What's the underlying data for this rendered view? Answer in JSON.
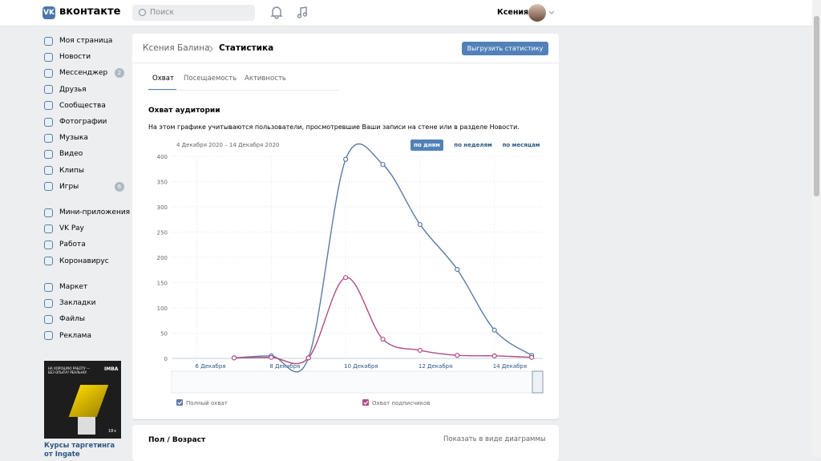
{
  "header": {
    "logo": "вконтакте",
    "search_placeholder": "Поиск",
    "user_name": "Ксения"
  },
  "sidebar": {
    "groups": [
      [
        {
          "label": "Моя страница"
        },
        {
          "label": "Новости"
        },
        {
          "label": "Мессенджер",
          "badge": "2"
        },
        {
          "label": "Друзья"
        },
        {
          "label": "Сообщества"
        },
        {
          "label": "Фотографии"
        },
        {
          "label": "Музыка"
        },
        {
          "label": "Видео"
        },
        {
          "label": "Клипы"
        },
        {
          "label": "Игры",
          "badge": "6"
        }
      ],
      [
        {
          "label": "Мини-приложения"
        },
        {
          "label": "VK Pay"
        },
        {
          "label": "Работа"
        },
        {
          "label": "Коронавирус"
        }
      ],
      [
        {
          "label": "Маркет"
        },
        {
          "label": "Закладки"
        },
        {
          "label": "Файлы"
        },
        {
          "label": "Реклама"
        }
      ]
    ]
  },
  "ad": {
    "brand": "IMBA",
    "headline": "НА ХОРОШУЮ РАБОТУ — БЕЗ ОПЫТА? РЕАЛЬНО!",
    "age": "18+",
    "title": "Курсы таргетинга",
    "subtitle": "от Ingate"
  },
  "breadcrumb": {
    "parent": "Ксения Балина",
    "current": "Статистика"
  },
  "export_button": "Выгрузить статистику",
  "tabs": [
    "Охват",
    "Посещаемость",
    "Активность"
  ],
  "section": {
    "title": "Охват аудитории",
    "description": "На этом графике учитываются пользователи, просмотревшие Ваши записи на стене или в разделе Новости.",
    "date_range": "4 Декабря 2020 – 14 Декабря 2020",
    "periods": [
      "по дням",
      "по неделям",
      "по месяцам"
    ]
  },
  "chart_data": {
    "type": "line",
    "x": [
      7,
      8,
      9,
      10,
      11,
      12,
      13,
      14,
      15
    ],
    "series": [
      {
        "name": "Полный охват",
        "color": "#5b7aa6",
        "values": [
          1,
          5,
          1,
          394,
          384,
          265,
          176,
          56,
          6
        ]
      },
      {
        "name": "Охват подписчиков",
        "color": "#b04d82",
        "values": [
          1,
          2,
          1,
          160,
          38,
          16,
          6,
          5,
          2
        ]
      }
    ],
    "xlim": [
      5.32,
      15.3
    ],
    "xticks": [
      {
        "value": 6,
        "label": "6 Декабря"
      },
      {
        "value": 8,
        "label": "8 Декабря"
      },
      {
        "value": 10,
        "label": "10 Декабря"
      },
      {
        "value": 12,
        "label": "12 Декабря"
      },
      {
        "value": 14,
        "label": "14 Декабря"
      }
    ],
    "ylim": [
      0,
      400
    ],
    "yticks": [
      0,
      50,
      100,
      150,
      200,
      250,
      300,
      350,
      400
    ],
    "grid": true
  },
  "second_section": {
    "title": "Пол / Возраст",
    "toggle": "Показать в виде диаграммы"
  }
}
